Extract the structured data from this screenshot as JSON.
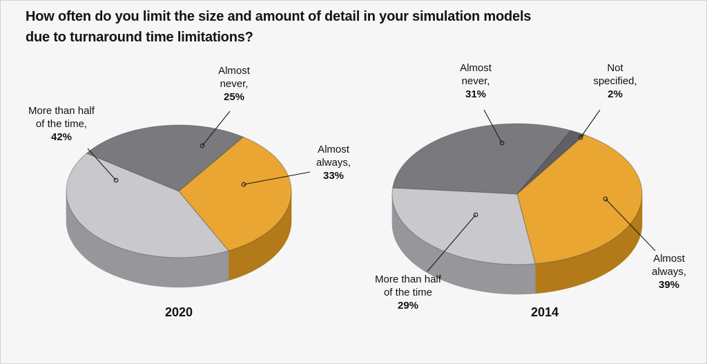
{
  "title": "How often do you limit the size and amount of detail in your simulation models\ndue to turnaround time limitations?",
  "colors": {
    "background": "#f6f6f6",
    "text": "#111111",
    "leader_line": "#1a1a1a",
    "orange": "#E9A632",
    "orange_side": "#B27A19",
    "silver": "#C9C9CD",
    "silver_side": "#96969B",
    "dark_gray": "#7A7A7E",
    "dark_gray_side": "#57575B",
    "darker_gray": "#5F5F64",
    "darker_gray_side": "#44444A"
  },
  "chart_data": [
    {
      "type": "pie",
      "title": "2020",
      "labels": [
        "Almost never",
        "Almost always",
        "More than half of the time"
      ],
      "values": [
        25,
        33,
        42
      ],
      "legend_position": "callout-labels",
      "slices": [
        {
          "name": "almost-never",
          "label": "Almost never",
          "value": 25,
          "label_text": "Almost\nnever,",
          "pct_text": "25%",
          "fill": "#7A7A7E",
          "side": "#57575B"
        },
        {
          "name": "almost-always",
          "label": "Almost always",
          "value": 33,
          "label_text": "Almost\nalways,",
          "pct_text": "33%",
          "fill": "#E9A632",
          "side": "#B27A19"
        },
        {
          "name": "more-than-half",
          "label": "More than half of the time",
          "value": 42,
          "label_text": "More than half\nof the time,",
          "pct_text": "42%",
          "fill": "#C9C9CD",
          "side": "#96969B"
        }
      ]
    },
    {
      "type": "pie",
      "title": "2014",
      "labels": [
        "Almost never",
        "Not specified",
        "Almost always",
        "More than half of the time"
      ],
      "values": [
        31,
        2,
        39,
        29
      ],
      "legend_position": "callout-labels",
      "slices": [
        {
          "name": "almost-never",
          "label": "Almost never",
          "value": 31,
          "label_text": "Almost\nnever,",
          "pct_text": "31%",
          "fill": "#7A7A7E",
          "side": "#57575B"
        },
        {
          "name": "not-specified",
          "label": "Not specified",
          "value": 2,
          "label_text": "Not\nspecified,",
          "pct_text": "2%",
          "fill": "#5F5F64",
          "side": "#44444A"
        },
        {
          "name": "almost-always",
          "label": "Almost always",
          "value": 39,
          "label_text": "Almost\nalways,",
          "pct_text": "39%",
          "fill": "#E9A632",
          "side": "#B27A19"
        },
        {
          "name": "more-than-half",
          "label": "More than half of the time",
          "value": 29,
          "label_text": "More than half\nof the time",
          "pct_text": "29%",
          "fill": "#C9C9CD",
          "side": "#96969B"
        }
      ]
    }
  ]
}
